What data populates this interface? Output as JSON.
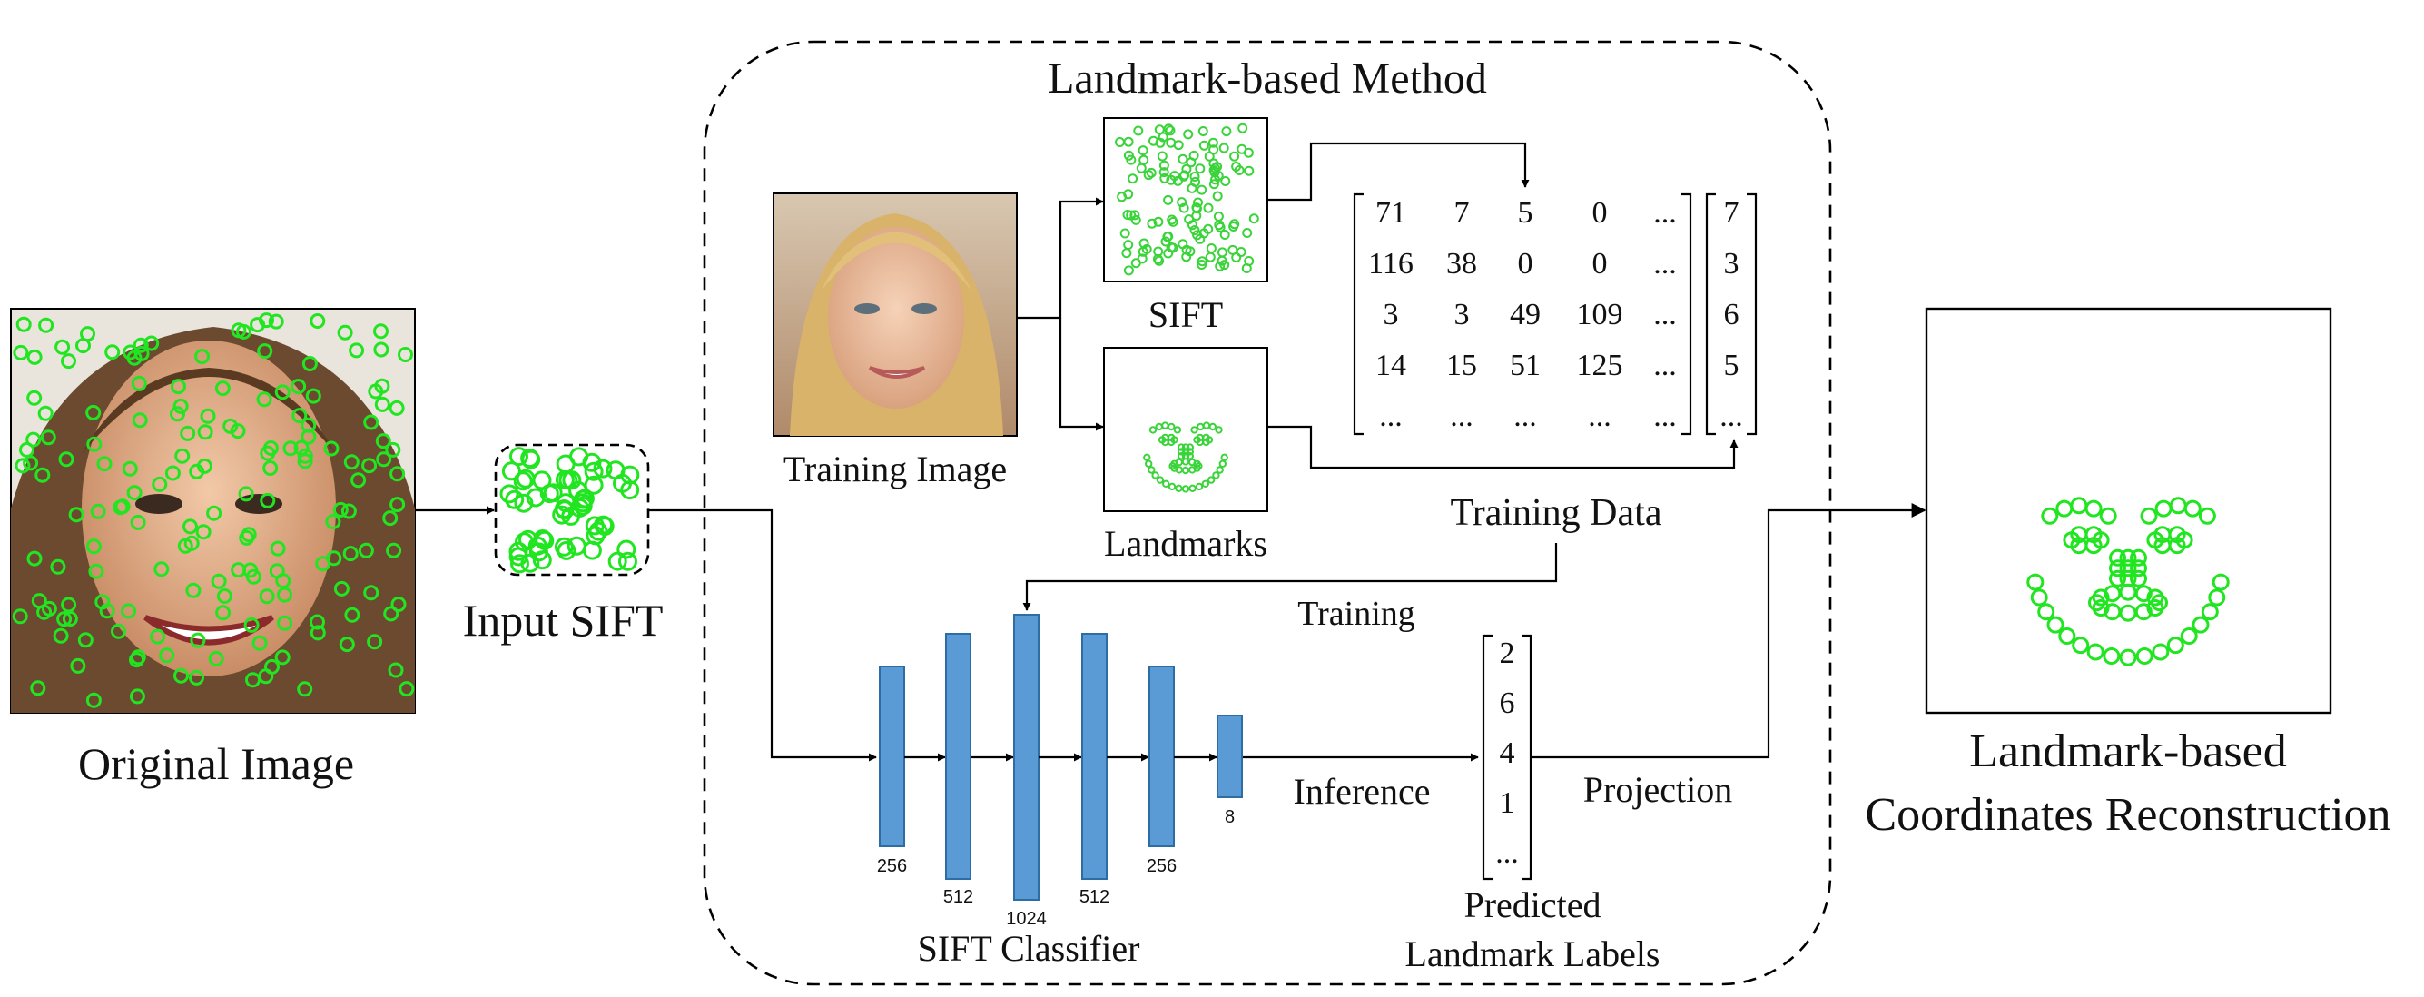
{
  "method_box": {
    "title": "Landmark-based Method"
  },
  "original_image": {
    "caption": "Original Image"
  },
  "input_sift": {
    "caption": "Input SIFT"
  },
  "training_image": {
    "caption": "Training Image"
  },
  "sift_panel": {
    "caption": "SIFT"
  },
  "landmarks_panel": {
    "caption": "Landmarks"
  },
  "training_matrix": {
    "caption": "Training Data",
    "rows": [
      [
        "71",
        "7",
        "5",
        "0",
        "..."
      ],
      [
        "116",
        "38",
        "0",
        "0",
        "..."
      ],
      [
        "3",
        "3",
        "49",
        "109",
        "..."
      ],
      [
        "14",
        "15",
        "51",
        "125",
        "..."
      ],
      [
        "...",
        "...",
        "...",
        "...",
        "..."
      ]
    ],
    "labels": [
      "7",
      "3",
      "6",
      "5",
      "..."
    ]
  },
  "training_label": "Training",
  "classifier": {
    "caption": "SIFT Classifier",
    "layer_sizes": [
      "256",
      "512",
      "1024",
      "512",
      "256",
      "8"
    ]
  },
  "inference_label": "Inference",
  "predicted": {
    "values": [
      "2",
      "6",
      "4",
      "1",
      "..."
    ],
    "caption_line1": "Predicted",
    "caption_line2": "Landmark Labels"
  },
  "projection_label": "Projection",
  "reconstruction": {
    "caption_line1": "Landmark-based",
    "caption_line2": "Coordinates Reconstruction"
  },
  "colors": {
    "keypoint_green": "#22e522",
    "layer_blue": "#5b9bd5",
    "layer_border": "#2e6da4"
  }
}
